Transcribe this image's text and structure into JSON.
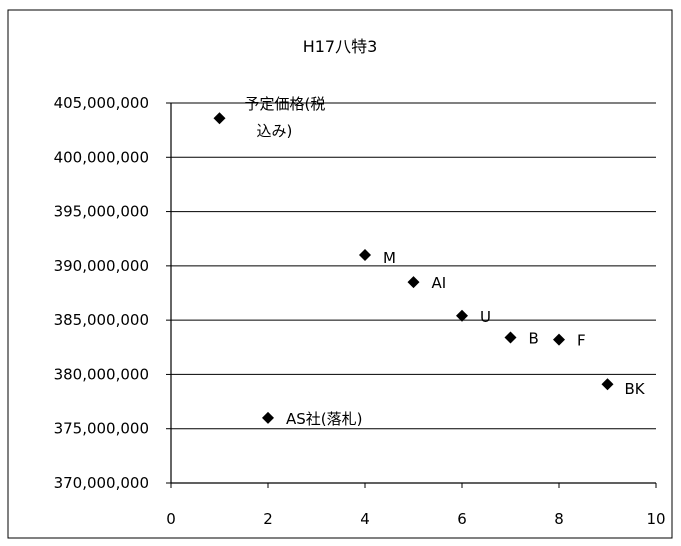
{
  "chart_data": {
    "type": "scatter",
    "title": "H17八特3",
    "xlabel": "",
    "ylabel": "",
    "xlim": [
      0,
      10
    ],
    "ylim": [
      370000000,
      405000000
    ],
    "x_ticks": [
      0,
      2,
      4,
      6,
      8,
      10
    ],
    "y_ticks": [
      405000000,
      400000000,
      395000000,
      390000000,
      385000000,
      380000000,
      375000000,
      370000000
    ],
    "x_tick_labels": [
      "0",
      "2",
      "4",
      "6",
      "8",
      "10"
    ],
    "y_tick_labels": [
      "405,000,000",
      "400,000,000",
      "395,000,000",
      "390,000,000",
      "385,000,000",
      "380,000,000",
      "375,000,000",
      "370,000,000"
    ],
    "grid": true,
    "marker": "diamond",
    "marker_color": "#000000",
    "points": [
      {
        "x": 1,
        "y": 403600000,
        "label": "予定価格(税込み)",
        "label_lines": [
          "予定価格(税",
          "込み)"
        ]
      },
      {
        "x": 2,
        "y": 376000000,
        "label": "AS社(落札)",
        "label_lines": [
          "AS社(落札)"
        ]
      },
      {
        "x": 4,
        "y": 391000000,
        "label": "M",
        "label_lines": [
          "M"
        ]
      },
      {
        "x": 5,
        "y": 388500000,
        "label": "AI",
        "label_lines": [
          "AI"
        ]
      },
      {
        "x": 6,
        "y": 385400000,
        "label": "U",
        "label_lines": [
          "U"
        ]
      },
      {
        "x": 7,
        "y": 383400000,
        "label": "B",
        "label_lines": [
          "B"
        ]
      },
      {
        "x": 8,
        "y": 383200000,
        "label": "F",
        "label_lines": [
          "F"
        ]
      },
      {
        "x": 9,
        "y": 379100000,
        "label": "BK",
        "label_lines": [
          "BK"
        ]
      }
    ]
  }
}
